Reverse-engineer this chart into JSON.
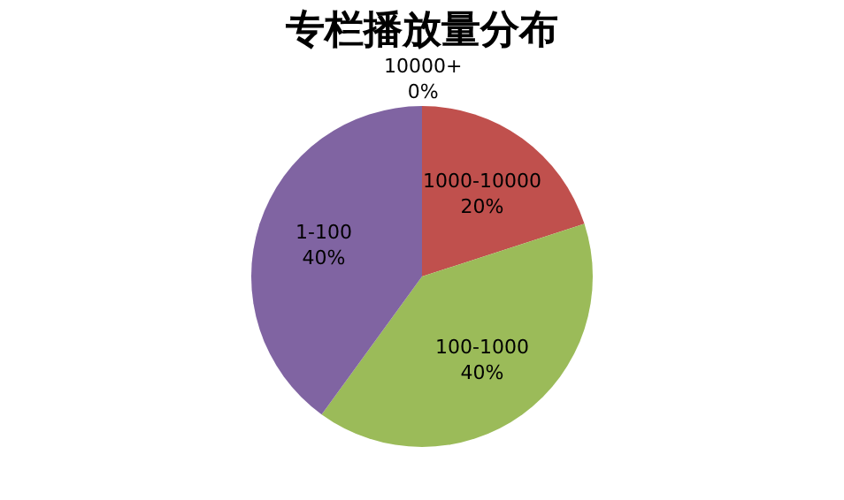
{
  "chart_data": {
    "type": "pie",
    "title": "专栏播放量分布",
    "categories": [
      "10000+",
      "1000-10000",
      "100-1000",
      "1-100"
    ],
    "values": [
      0,
      20,
      40,
      40
    ],
    "colors": [
      "#4f81bd",
      "#c0504d",
      "#9bbb59",
      "#8064a2"
    ],
    "value_labels": [
      "0%",
      "20%",
      "40%",
      "40%"
    ]
  }
}
